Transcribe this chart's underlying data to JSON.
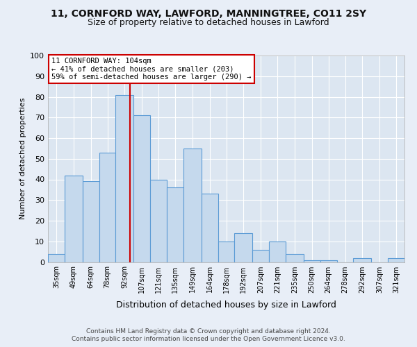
{
  "title1": "11, CORNFORD WAY, LAWFORD, MANNINGTREE, CO11 2SY",
  "title2": "Size of property relative to detached houses in Lawford",
  "xlabel": "Distribution of detached houses by size in Lawford",
  "ylabel": "Number of detached properties",
  "footer1": "Contains HM Land Registry data © Crown copyright and database right 2024.",
  "footer2": "Contains public sector information licensed under the Open Government Licence v3.0.",
  "bin_labels": [
    "35sqm",
    "49sqm",
    "64sqm",
    "78sqm",
    "92sqm",
    "107sqm",
    "121sqm",
    "135sqm",
    "149sqm",
    "164sqm",
    "178sqm",
    "192sqm",
    "207sqm",
    "221sqm",
    "235sqm",
    "250sqm",
    "264sqm",
    "278sqm",
    "292sqm",
    "307sqm",
    "321sqm"
  ],
  "bar_values": [
    4,
    42,
    39,
    53,
    81,
    71,
    40,
    36,
    55,
    33,
    10,
    14,
    6,
    10,
    4,
    1,
    1,
    0,
    2,
    0,
    2
  ],
  "bar_color": "#c5d9ed",
  "bar_edge_color": "#5b9bd5",
  "bar_edge_width": 0.8,
  "bg_color": "#e8eef7",
  "plot_bg_color": "#dce6f1",
  "grid_color": "#ffffff",
  "vline_x": 104,
  "vline_color": "#cc0000",
  "bin_edges": [
    35,
    49,
    64,
    78,
    92,
    107,
    121,
    135,
    149,
    164,
    178,
    192,
    207,
    221,
    235,
    250,
    264,
    278,
    292,
    307,
    321,
    335
  ],
  "annotation_title": "11 CORNFORD WAY: 104sqm",
  "annotation_line1": "← 41% of detached houses are smaller (203)",
  "annotation_line2": "59% of semi-detached houses are larger (290) →",
  "annotation_box_color": "#ffffff",
  "annotation_border_color": "#cc0000",
  "ylim": [
    0,
    100
  ],
  "yticks": [
    0,
    10,
    20,
    30,
    40,
    50,
    60,
    70,
    80,
    90,
    100
  ]
}
